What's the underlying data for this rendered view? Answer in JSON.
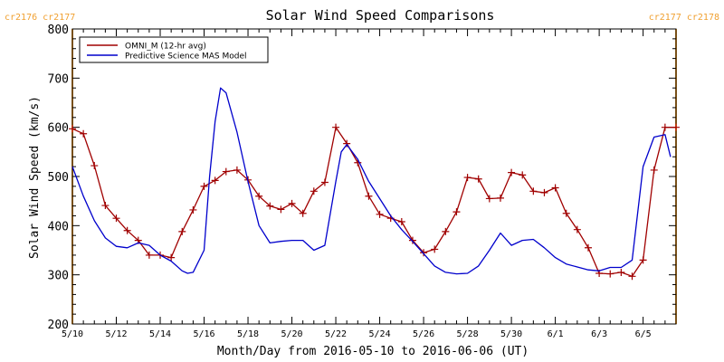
{
  "colors": {
    "omni": "#a00000",
    "mas": "#0000cc",
    "cr_line": "#f0a030",
    "cr_text": "#f0a030",
    "axis": "#000000"
  },
  "chart_data": {
    "type": "line",
    "title": "Solar Wind Speed Comparisons",
    "xlabel": "Month/Day from 2016-05-10 to 2016-06-06 (UT)",
    "ylabel": "Solar Wind Speed (km/s)",
    "xlim": [
      0,
      27.5
    ],
    "ylim": [
      200,
      800
    ],
    "yticks": [
      200,
      300,
      400,
      500,
      600,
      700,
      800
    ],
    "xticks": [
      {
        "x": 0,
        "label": "5/10"
      },
      {
        "x": 2,
        "label": "5/12"
      },
      {
        "x": 4,
        "label": "5/14"
      },
      {
        "x": 6,
        "label": "5/16"
      },
      {
        "x": 8,
        "label": "5/18"
      },
      {
        "x": 10,
        "label": "5/20"
      },
      {
        "x": 12,
        "label": "5/22"
      },
      {
        "x": 14,
        "label": "5/24"
      },
      {
        "x": 16,
        "label": "5/26"
      },
      {
        "x": 18,
        "label": "5/28"
      },
      {
        "x": 20,
        "label": "5/30"
      },
      {
        "x": 22,
        "label": "6/1"
      },
      {
        "x": 24,
        "label": "6/3"
      },
      {
        "x": 26,
        "label": "6/5"
      }
    ],
    "minor_tick_step": 0.5,
    "grid": false,
    "legend_position": "top-left",
    "cr_markers": [
      {
        "x": 0,
        "labels": "cr2176 cr2177",
        "align": "start"
      },
      {
        "x": 27.5,
        "labels": "cr2177 cr2178",
        "align": "end"
      }
    ],
    "series": [
      {
        "name": "OMNI_M (12-hr avg)",
        "color": "#a00000",
        "markers": true,
        "x": [
          0,
          0.5,
          1,
          1.5,
          2,
          2.5,
          3,
          3.5,
          4,
          4.5,
          5,
          5.5,
          6,
          6.5,
          7,
          7.5,
          8,
          8.5,
          9,
          9.5,
          10,
          10.5,
          11,
          11.5,
          12,
          12.5,
          13,
          13.5,
          14,
          14.5,
          15,
          15.5,
          16,
          16.5,
          17,
          17.5,
          18,
          18.5,
          19,
          19.5,
          20,
          20.5,
          21,
          21.5,
          22,
          22.5,
          23,
          23.5,
          24,
          24.5,
          25,
          25.5,
          26,
          26.5,
          27,
          27.5
        ],
        "y": [
          597,
          587,
          522,
          441,
          415,
          390,
          370,
          340,
          340,
          335,
          388,
          432,
          480,
          492,
          510,
          513,
          493,
          460,
          440,
          433,
          445,
          425,
          470,
          488,
          600,
          567,
          528,
          460,
          423,
          415,
          408,
          370,
          345,
          352,
          388,
          428,
          498,
          495,
          455,
          456,
          508,
          503,
          470,
          467,
          477,
          425,
          392,
          355,
          303,
          302,
          305,
          297,
          330,
          513,
          600,
          600
        ]
      },
      {
        "name": "Predictive Science MAS Model",
        "color": "#0000cc",
        "markers": false,
        "x": [
          0,
          0.5,
          1,
          1.5,
          2,
          2.5,
          3,
          3.5,
          4,
          4.5,
          5,
          5.25,
          5.5,
          6,
          6.25,
          6.5,
          6.75,
          7,
          7.5,
          8,
          8.5,
          9,
          9.5,
          10,
          10.5,
          11,
          11.5,
          12,
          12.25,
          12.5,
          13,
          13.5,
          14,
          14.5,
          15,
          15.5,
          16,
          16.5,
          17,
          17.5,
          18,
          18.5,
          19,
          19.5,
          20,
          20.5,
          21,
          21.5,
          22,
          22.5,
          23,
          23.5,
          24,
          24.5,
          25,
          25.5,
          26,
          26.5,
          27,
          27.25
        ],
        "y": [
          520,
          460,
          410,
          375,
          358,
          355,
          365,
          360,
          340,
          328,
          308,
          303,
          305,
          350,
          500,
          612,
          680,
          670,
          590,
          490,
          400,
          365,
          368,
          370,
          370,
          350,
          360,
          490,
          550,
          565,
          535,
          490,
          455,
          420,
          392,
          368,
          343,
          318,
          305,
          302,
          303,
          318,
          350,
          385,
          360,
          370,
          372,
          355,
          335,
          322,
          316,
          310,
          308,
          315,
          315,
          330,
          520,
          580,
          585,
          540
        ]
      }
    ]
  }
}
